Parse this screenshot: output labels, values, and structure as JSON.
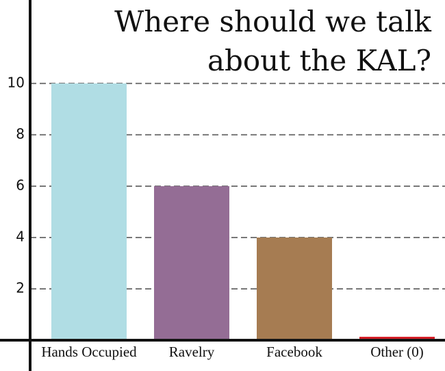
{
  "chart_data": {
    "type": "bar",
    "title": [
      "Where should we talk",
      "about the KAL?"
    ],
    "categories": [
      "Hands Occupied",
      "Ravelry",
      "Facebook",
      "Other (0)"
    ],
    "values": [
      10,
      6,
      4,
      0
    ],
    "colors": [
      "#b0dde4",
      "#946d95",
      "#a67c52",
      "#d41f28"
    ],
    "ylim": [
      0,
      13.25
    ],
    "yticks": [
      2,
      4,
      6,
      8,
      10
    ],
    "grid": true
  }
}
